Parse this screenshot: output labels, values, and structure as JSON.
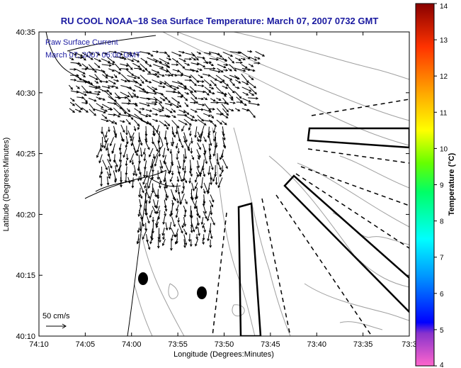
{
  "title": "RU COOL  NOAA−18  Sea Surface Temperature:  March 07, 2007 0732 GMT",
  "map": {
    "xlabel": "Longitude (Degrees:Minutes)",
    "ylabel": "Latitude (Degrees:Minutes)",
    "x_ticks": [
      "74:10",
      "74:05",
      "74:00",
      "73:55",
      "73:50",
      "73:45",
      "73:40",
      "73:35",
      "73:3"
    ],
    "y_ticks": [
      "40:35",
      "40:30",
      "40:25",
      "40:20",
      "40:15",
      "40:10"
    ],
    "legend_line1": "Raw Surface Current",
    "legend_line2": "March 07, 2007 06:00 GMT",
    "scale_label": "50 cm/s"
  },
  "colorbar": {
    "label": "Temperature (°C)",
    "min": 4,
    "max": 14,
    "ticks": [
      "4",
      "5",
      "6",
      "7",
      "8",
      "9",
      "10",
      "11",
      "12",
      "13",
      "14"
    ],
    "colors": [
      "#ff66cc",
      "#8833cc",
      "#0000ff",
      "#0099ff",
      "#00ffff",
      "#00ff66",
      "#66ff00",
      "#ffff00",
      "#ffaa00",
      "#ff3300",
      "#cc0000",
      "#880000"
    ]
  }
}
